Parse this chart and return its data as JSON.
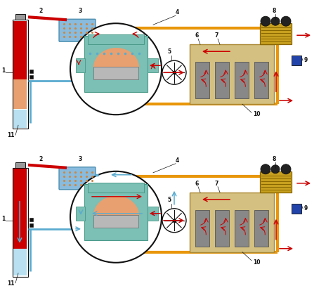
{
  "bg": "#ffffff",
  "orange": "#E8960A",
  "red": "#CC0000",
  "blue": "#5AABCF",
  "teal": "#7BBFB5",
  "tan": "#D4C080",
  "dark": "#111111",
  "peach": "#E8A070",
  "blue_light": "#B8E0F0",
  "teal_dark": "#4A9A88",
  "motor_color": "#C8A840",
  "sensor_color": "#3355AA",
  "pipe_lw": 2.0,
  "arrow_lw": 1.1
}
